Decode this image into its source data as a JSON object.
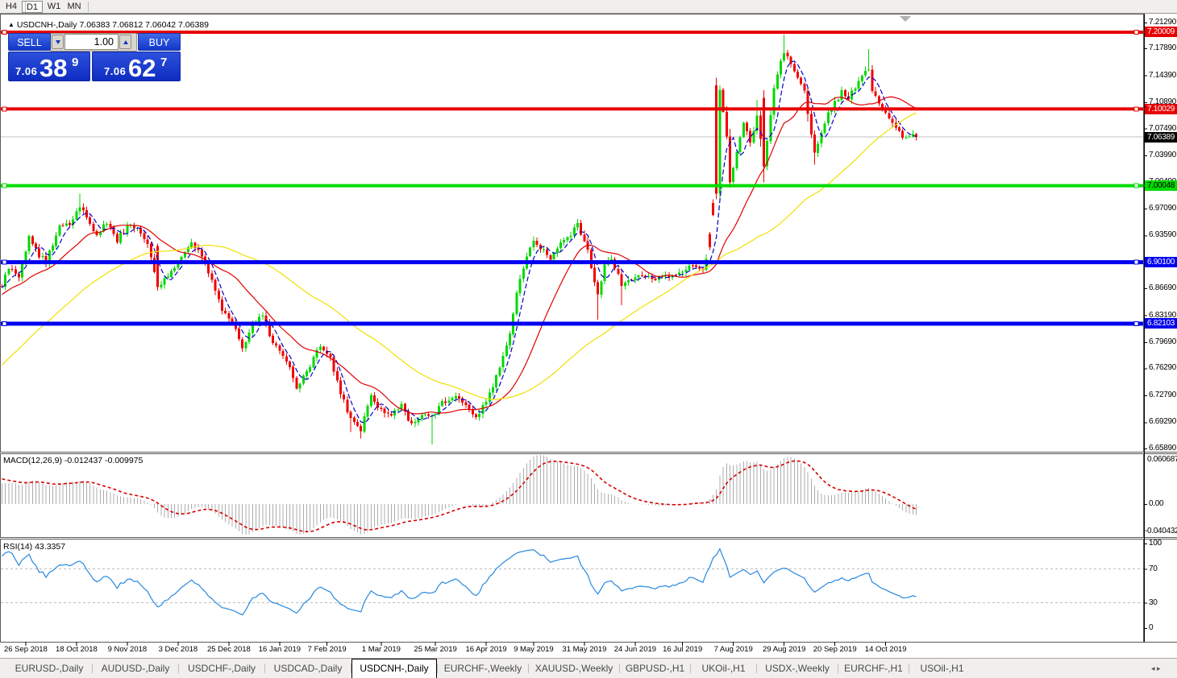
{
  "toolbar": {
    "timeframes": [
      "H4",
      "D1",
      "W1",
      "MN"
    ],
    "active": "D1"
  },
  "title": {
    "collapse_arrow": "▲",
    "symbol": "USDCNH-,Daily",
    "ohlc": "7.06383 7.06812 7.06042 7.06389"
  },
  "trade_panel": {
    "sell_label": "SELL",
    "buy_label": "BUY",
    "volume": "1.00",
    "sell_price": {
      "small": "7.06",
      "big": "38",
      "sup": "9"
    },
    "buy_price": {
      "small": "7.06",
      "big": "62",
      "sup": "7"
    }
  },
  "chart_data": {
    "type": "candlestick",
    "symbol": "USDCNH-,Daily",
    "ohlc_display": {
      "open": "7.06383",
      "high": "7.06812",
      "low": "7.06042",
      "close": "7.06389"
    },
    "current_price": {
      "value": 7.06389,
      "label": "7.06389",
      "badge_bg": "#000000",
      "badge_fg": "#FFFFFF"
    },
    "y_axis_ticks": [
      "7.21290",
      "7.17890",
      "7.14390",
      "7.10890",
      "7.07490",
      "7.03990",
      "7.00490",
      "6.97090",
      "6.93590",
      "6.90190",
      "6.86690",
      "6.83190",
      "6.79690",
      "6.76290",
      "6.72790",
      "6.69290",
      "6.65890"
    ],
    "price_levels": [
      {
        "price": 7.20009,
        "label": "7.20009",
        "color": "#E80000",
        "thickness": 4,
        "text": "#FFFFFF"
      },
      {
        "price": 7.10029,
        "label": "7.10029",
        "color": "#E80000",
        "thickness": 4,
        "text": "#FFFFFF"
      },
      {
        "price": 7.00048,
        "label": "7.00048",
        "color": "#00DC00",
        "thickness": 4,
        "text": "#000000"
      },
      {
        "price": 6.901,
        "label": "6.90100",
        "color": "#0000F0",
        "thickness": 5,
        "text": "#FFFFFF"
      },
      {
        "price": 6.82103,
        "label": "6.82103",
        "color": "#0000F0",
        "thickness": 5,
        "text": "#FFFFFF"
      }
    ],
    "x_ticks": [
      {
        "i": 7,
        "label": "26 Sep 2018"
      },
      {
        "i": 22,
        "label": "18 Oct 2018"
      },
      {
        "i": 37,
        "label": "9 Nov 2018"
      },
      {
        "i": 52,
        "label": "3 Dec 2018"
      },
      {
        "i": 67,
        "label": "25 Dec 2018"
      },
      {
        "i": 82,
        "label": "16 Jan 2019"
      },
      {
        "i": 96,
        "label": "7 Feb 2019"
      },
      {
        "i": 112,
        "label": "1 Mar 2019"
      },
      {
        "i": 128,
        "label": "25 Mar 2019"
      },
      {
        "i": 143,
        "label": "16 Apr 2019"
      },
      {
        "i": 157,
        "label": "9 May 2019"
      },
      {
        "i": 172,
        "label": "31 May 2019"
      },
      {
        "i": 187,
        "label": "24 Jun 2019"
      },
      {
        "i": 201,
        "label": "16 Jul 2019"
      },
      {
        "i": 216,
        "label": "7 Aug 2019"
      },
      {
        "i": 231,
        "label": "29 Aug 2019"
      },
      {
        "i": 246,
        "label": "20 Sep 2019"
      },
      {
        "i": 261,
        "label": "14 Oct 2019"
      }
    ],
    "candle_count": 271,
    "close_anchors": [
      [
        0,
        6.872
      ],
      [
        2,
        6.893
      ],
      [
        5,
        6.88
      ],
      [
        8,
        6.932
      ],
      [
        11,
        6.91
      ],
      [
        13,
        6.902
      ],
      [
        17,
        6.948
      ],
      [
        20,
        6.95
      ],
      [
        23,
        6.975
      ],
      [
        25,
        6.96
      ],
      [
        28,
        6.937
      ],
      [
        31,
        6.954
      ],
      [
        34,
        6.93
      ],
      [
        37,
        6.948
      ],
      [
        40,
        6.944
      ],
      [
        43,
        6.926
      ],
      [
        46,
        6.87
      ],
      [
        49,
        6.883
      ],
      [
        52,
        6.9
      ],
      [
        56,
        6.928
      ],
      [
        60,
        6.9
      ],
      [
        62,
        6.878
      ],
      [
        65,
        6.837
      ],
      [
        68,
        6.824
      ],
      [
        71,
        6.786
      ],
      [
        74,
        6.822
      ],
      [
        77,
        6.831
      ],
      [
        80,
        6.795
      ],
      [
        84,
        6.775
      ],
      [
        87,
        6.737
      ],
      [
        90,
        6.758
      ],
      [
        94,
        6.792
      ],
      [
        97,
        6.776
      ],
      [
        100,
        6.732
      ],
      [
        103,
        6.697
      ],
      [
        106,
        6.683
      ],
      [
        109,
        6.728
      ],
      [
        111,
        6.712
      ],
      [
        115,
        6.703
      ],
      [
        118,
        6.716
      ],
      [
        121,
        6.689
      ],
      [
        124,
        6.704
      ],
      [
        127,
        6.699
      ],
      [
        130,
        6.717
      ],
      [
        134,
        6.726
      ],
      [
        137,
        6.718
      ],
      [
        140,
        6.697
      ],
      [
        144,
        6.731
      ],
      [
        147,
        6.763
      ],
      [
        150,
        6.81
      ],
      [
        152,
        6.862
      ],
      [
        155,
        6.908
      ],
      [
        157,
        6.928
      ],
      [
        159,
        6.921
      ],
      [
        162,
        6.905
      ],
      [
        165,
        6.927
      ],
      [
        168,
        6.937
      ],
      [
        170,
        6.951
      ],
      [
        173,
        6.915
      ],
      [
        176,
        6.856
      ],
      [
        178,
        6.895
      ],
      [
        180,
        6.908
      ],
      [
        183,
        6.872
      ],
      [
        186,
        6.879
      ],
      [
        189,
        6.885
      ],
      [
        193,
        6.877
      ],
      [
        196,
        6.883
      ],
      [
        200,
        6.886
      ],
      [
        204,
        6.896
      ],
      [
        207,
        6.888
      ],
      [
        209,
        6.918
      ],
      [
        210,
        6.965
      ],
      [
        211,
        6.993
      ],
      [
        212,
        7.128
      ],
      [
        214,
        7.065
      ],
      [
        215,
        7.005
      ],
      [
        217,
        7.045
      ],
      [
        219,
        7.082
      ],
      [
        221,
        7.055
      ],
      [
        223,
        7.095
      ],
      [
        225,
        7.025
      ],
      [
        226,
        7.06
      ],
      [
        228,
        7.13
      ],
      [
        230,
        7.16
      ],
      [
        231,
        7.175
      ],
      [
        233,
        7.16
      ],
      [
        235,
        7.14
      ],
      [
        237,
        7.125
      ],
      [
        239,
        7.065
      ],
      [
        240,
        7.042
      ],
      [
        242,
        7.07
      ],
      [
        244,
        7.093
      ],
      [
        246,
        7.108
      ],
      [
        248,
        7.122
      ],
      [
        250,
        7.112
      ],
      [
        252,
        7.13
      ],
      [
        254,
        7.145
      ],
      [
        256,
        7.152
      ],
      [
        257,
        7.125
      ],
      [
        259,
        7.11
      ],
      [
        261,
        7.095
      ],
      [
        263,
        7.083
      ],
      [
        265,
        7.07
      ],
      [
        267,
        7.062
      ],
      [
        269,
        7.068
      ],
      [
        270,
        7.0639
      ]
    ],
    "open_overrides": [
      [
        46,
        6.922
      ],
      [
        209,
        6.938
      ],
      [
        210,
        6.978
      ],
      [
        211,
        7.131
      ],
      [
        225,
        7.115
      ]
    ],
    "wick_high_overrides": [
      [
        23,
        6.99
      ],
      [
        211,
        7.141
      ],
      [
        212,
        7.131
      ],
      [
        223,
        7.112
      ],
      [
        231,
        7.197
      ],
      [
        256,
        7.178
      ]
    ],
    "wick_low_overrides": [
      [
        103,
        6.68
      ],
      [
        106,
        6.672
      ],
      [
        127,
        6.664
      ],
      [
        176,
        6.826
      ],
      [
        183,
        6.845
      ],
      [
        211,
        6.983
      ],
      [
        215,
        6.998
      ],
      [
        225,
        7.005
      ],
      [
        240,
        7.028
      ]
    ],
    "prehistory": {
      "start": 6.46,
      "end": 6.868,
      "count": 90,
      "flat_tail": 10
    },
    "up_color": "#00D800",
    "down_color": "#F00000",
    "moving_averages": [
      {
        "period": 5,
        "color": "#0000C8",
        "dashed": true
      },
      {
        "period": 20,
        "color": "#E00000",
        "dashed": false
      },
      {
        "period": 60,
        "color": "#F0E000",
        "dashed": false
      }
    ],
    "macd": {
      "label": "MACD(12,26,9) -0.012437 -0.009975",
      "fast": 12,
      "slow": 26,
      "signal": 9,
      "axis_max": "0.060687",
      "axis_zero": "0.00",
      "axis_min": "-0.040432",
      "max": 0.060687,
      "min": -0.040432,
      "hist_color": "#ACACAC",
      "signal_color": "#D80000"
    },
    "rsi": {
      "label": "RSI(14) 43.3357",
      "period": 14,
      "levels": [
        "100",
        "70",
        "30",
        "0"
      ],
      "line_color": "#2688E0",
      "level_color": "#BDBDBD"
    }
  },
  "shift_marker": "chart-shift-triangle",
  "tabs": {
    "items": [
      "EURUSD-,Daily",
      "AUDUSD-,Daily",
      "USDCHF-,Daily",
      "USDCAD-,Daily",
      "USDCNH-,Daily",
      "EURCHF-,Weekly",
      "XAUUSD-,Weekly",
      "GBPUSD-,H1",
      "UKOil-,H1",
      "USDX-,Weekly",
      "EURCHF-,H1",
      "USOil-,H1"
    ],
    "active_index": 4,
    "scroll_left": "◂",
    "scroll_right": "▸"
  }
}
